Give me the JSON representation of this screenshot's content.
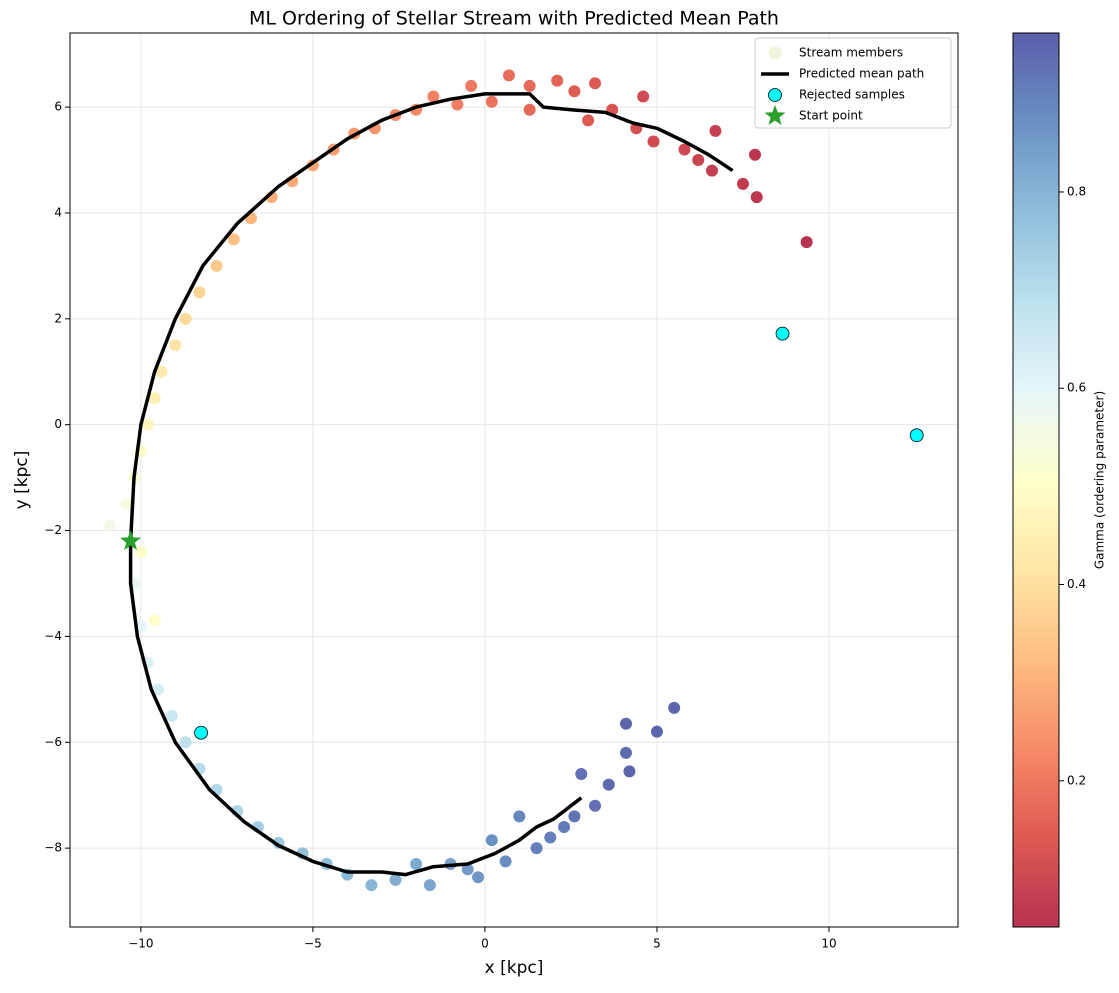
{
  "chart_data": {
    "type": "scatter",
    "title": "ML Ordering of Stellar Stream with Predicted Mean Path",
    "xlabel": "x [kpc]",
    "ylabel": "y [kpc]",
    "xlim": [
      -12.06,
      13.75
    ],
    "ylim": [
      -9.49,
      7.4
    ],
    "xticks": [
      {
        "value": -10,
        "label": "−10"
      },
      {
        "value": -5,
        "label": "−5"
      },
      0,
      5,
      10
    ],
    "yticks": [
      {
        "value": -8,
        "label": "−8"
      },
      {
        "value": -6,
        "label": "−6"
      },
      {
        "value": -4,
        "label": "−4"
      },
      {
        "value": -2,
        "label": "−2"
      },
      0,
      2,
      4,
      6
    ],
    "grid": true,
    "legend": "upper right",
    "colorbar": {
      "label": "Gamma (ordering parameter)",
      "colormap": "RdYlBu",
      "clim": [
        0.051,
        0.962
      ],
      "ticks": [
        0.2,
        0.4,
        0.6,
        0.8
      ]
    },
    "series": [
      {
        "name": "Stream members",
        "marker": "circle",
        "color": "#eef5da",
        "x": [
          7.9,
          7.5,
          7.85,
          9.35,
          6.6,
          6.7,
          6.2,
          5.8,
          4.9,
          4.6,
          4.4,
          3.7,
          3.2,
          3.0,
          2.6,
          2.1,
          1.3,
          1.3,
          0.7,
          0.2,
          -0.4,
          -0.8,
          -1.5,
          -2.0,
          -2.6,
          -3.2,
          -3.8,
          -4.4,
          -5.0,
          -5.6,
          -6.2,
          -6.8,
          -7.3,
          -7.8,
          -8.3,
          -8.7,
          -9.0,
          -9.4,
          -9.6,
          -9.8,
          -10.0,
          -10.2,
          -10.4,
          -10.9,
          -10.0,
          -9.6,
          -10.2,
          -10.0,
          -9.8,
          -9.5,
          -9.1,
          -8.7,
          -8.3,
          -7.8,
          -7.2,
          -6.6,
          -6.0,
          -5.3,
          -4.6,
          -4.0,
          -3.3,
          -2.6,
          -2.0,
          -1.6,
          -1.0,
          -0.5,
          -0.2,
          0.2,
          0.6,
          1.0,
          1.5,
          1.9,
          2.3,
          2.6,
          2.8,
          3.2,
          3.6,
          4.1,
          4.2,
          4.1,
          5.0,
          5.5
        ],
        "y": [
          4.3,
          4.55,
          5.1,
          3.45,
          4.8,
          5.55,
          5.0,
          5.2,
          5.35,
          6.2,
          5.6,
          5.95,
          6.45,
          5.75,
          6.3,
          6.5,
          6.4,
          5.95,
          6.6,
          6.1,
          6.4,
          6.05,
          6.2,
          5.95,
          5.85,
          5.6,
          5.5,
          5.2,
          4.9,
          4.6,
          4.3,
          3.9,
          3.5,
          3.0,
          2.5,
          2.0,
          1.5,
          1.0,
          0.5,
          0.0,
          -0.5,
          -1.0,
          -1.5,
          -1.9,
          -2.4,
          -3.7,
          -3.0,
          -3.8,
          -4.5,
          -5.0,
          -5.5,
          -6.0,
          -6.5,
          -6.9,
          -7.3,
          -7.6,
          -7.9,
          -8.1,
          -8.3,
          -8.5,
          -8.7,
          -8.6,
          -8.3,
          -8.7,
          -8.3,
          -8.4,
          -8.55,
          -7.85,
          -8.25,
          -7.4,
          -8.0,
          -7.8,
          -7.6,
          -7.4,
          -6.6,
          -7.2,
          -6.8,
          -6.2,
          -6.55,
          -5.65,
          -5.8,
          -5.35
        ],
        "c": [
          0.06,
          0.07,
          0.06,
          0.05,
          0.08,
          0.08,
          0.09,
          0.1,
          0.11,
          0.11,
          0.12,
          0.13,
          0.14,
          0.14,
          0.15,
          0.16,
          0.17,
          0.17,
          0.18,
          0.19,
          0.2,
          0.21,
          0.22,
          0.23,
          0.24,
          0.25,
          0.26,
          0.27,
          0.28,
          0.29,
          0.3,
          0.31,
          0.33,
          0.35,
          0.37,
          0.39,
          0.41,
          0.43,
          0.45,
          0.47,
          0.5,
          0.52,
          0.54,
          0.56,
          0.5,
          0.5,
          0.58,
          0.6,
          0.62,
          0.64,
          0.66,
          0.68,
          0.7,
          0.71,
          0.72,
          0.74,
          0.75,
          0.77,
          0.78,
          0.79,
          0.8,
          0.81,
          0.82,
          0.83,
          0.84,
          0.85,
          0.86,
          0.87,
          0.88,
          0.89,
          0.9,
          0.9,
          0.91,
          0.92,
          0.93,
          0.93,
          0.94,
          0.94,
          0.95,
          0.95,
          0.95,
          0.95
        ]
      },
      {
        "name": "Predicted mean path",
        "marker": "line",
        "color": "#000000",
        "x": [
          7.2,
          6.5,
          5.8,
          5.0,
          4.3,
          3.5,
          2.5,
          1.7,
          1.3,
          0,
          -1.0,
          -2.0,
          -3.0,
          -4.0,
          -5.0,
          -6.0,
          -7.2,
          -8.2,
          -9.0,
          -9.6,
          -10.0,
          -10.2,
          -10.3,
          -10.3,
          -10.1,
          -9.7,
          -9.0,
          -8.0,
          -7.0,
          -6.0,
          -5.0,
          -4.0,
          -3.0,
          -2.3,
          -1.5,
          -0.5,
          0.3,
          1.0,
          1.5,
          2.0,
          2.8
        ],
        "y": [
          4.8,
          5.1,
          5.35,
          5.6,
          5.7,
          5.9,
          5.95,
          6.0,
          6.25,
          6.25,
          6.15,
          6.0,
          5.75,
          5.4,
          4.95,
          4.5,
          3.8,
          3.0,
          2.0,
          1.0,
          0,
          -1.0,
          -2.2,
          -3.0,
          -4.0,
          -5.0,
          -6.0,
          -6.9,
          -7.5,
          -7.95,
          -8.25,
          -8.45,
          -8.45,
          -8.5,
          -8.35,
          -8.3,
          -8.1,
          -7.85,
          -7.6,
          -7.45,
          -7.05
        ]
      },
      {
        "name": "Rejected samples",
        "marker": "circle",
        "color": "#00ffff",
        "x": [
          8.65,
          12.55,
          -8.25
        ],
        "y": [
          1.72,
          -0.2,
          -5.82
        ]
      },
      {
        "name": "Start point",
        "marker": "star",
        "color": "#2ca02c",
        "x": [
          -10.3
        ],
        "y": [
          -2.2
        ]
      }
    ]
  }
}
